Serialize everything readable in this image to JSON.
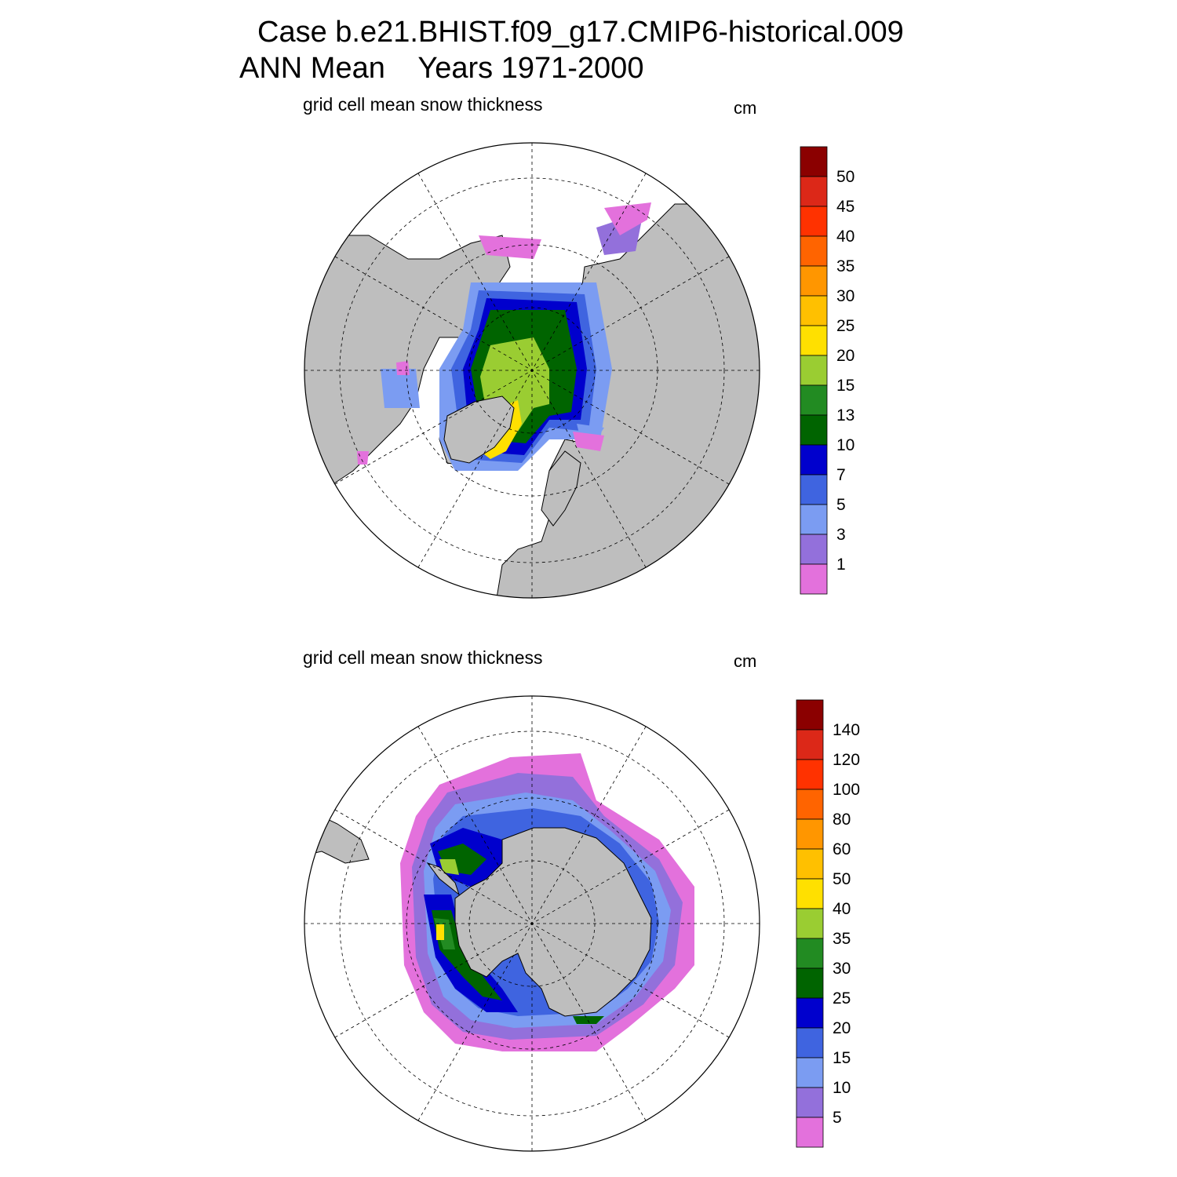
{
  "title": {
    "line1": "Case b.e21.BHIST.f09_g17.CMIP6-historical.009",
    "line2": "ANN Mean    Years 1971-2000"
  },
  "colors": {
    "land": "#bebebe",
    "ocean": "#ffffff",
    "scale": [
      "#e371dc",
      "#9370db",
      "#7b9cf2",
      "#3f64e0",
      "#0000cd",
      "#006400",
      "#228b22",
      "#9acd32",
      "#ffe000",
      "#ffc000",
      "#ff9600",
      "#ff6400",
      "#ff3200",
      "#dc2818",
      "#8b0000"
    ]
  },
  "chart_data": [
    {
      "type": "heatmap",
      "title": "grid cell mean snow thickness",
      "units": "cm",
      "hemisphere": "north",
      "projection": "polar stereographic",
      "grid": true,
      "colorbar_levels": [
        1,
        3,
        5,
        7,
        10,
        13,
        15,
        20,
        25,
        30,
        35,
        40,
        45,
        50
      ],
      "colorbar_placement": "right"
    },
    {
      "type": "heatmap",
      "title": "grid cell mean snow thickness",
      "units": "cm",
      "hemisphere": "south",
      "projection": "polar stereographic",
      "grid": true,
      "colorbar_levels": [
        5,
        10,
        15,
        20,
        25,
        30,
        35,
        40,
        50,
        60,
        80,
        100,
        120,
        140
      ],
      "colorbar_placement": "right"
    }
  ]
}
